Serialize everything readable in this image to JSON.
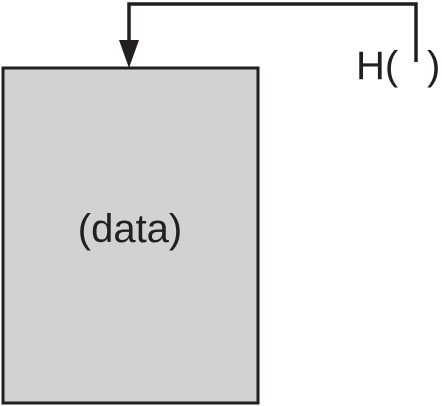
{
  "diagram": {
    "block_label": "(data)",
    "hash_prefix": "H(",
    "hash_suffix": ")"
  },
  "colors": {
    "block_fill": "#d1d2d4",
    "stroke": "#231f20",
    "background": "#ffffff"
  }
}
